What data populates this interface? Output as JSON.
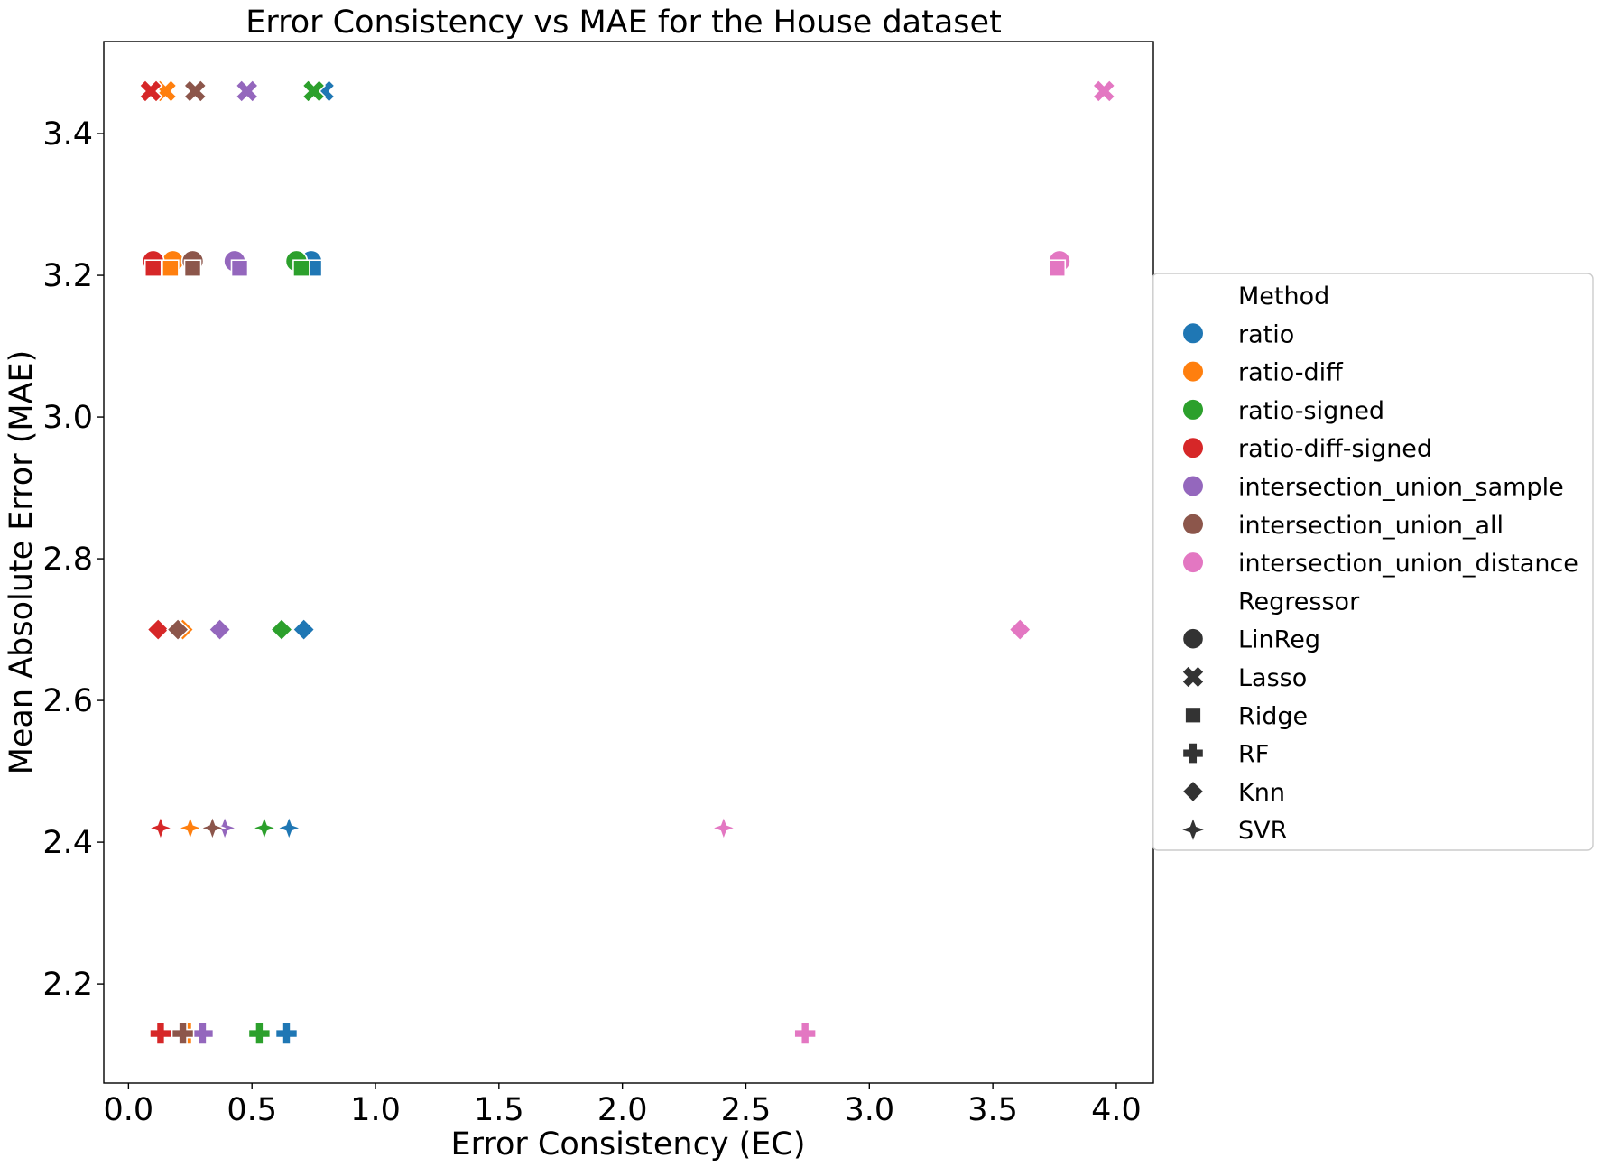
{
  "chart_data": {
    "type": "scatter",
    "title": "Error Consistency vs MAE for the House dataset",
    "xlabel": "Error Consistency (EC)",
    "ylabel": "Mean Absolute Error (MAE)",
    "xlim": [
      -0.1,
      4.15
    ],
    "ylim": [
      2.06,
      3.53
    ],
    "xticks": [
      0.0,
      0.5,
      1.0,
      1.5,
      2.0,
      2.5,
      3.0,
      3.5,
      4.0
    ],
    "xtick_labels": [
      "0.0",
      "0.5",
      "1.0",
      "1.5",
      "2.0",
      "2.5",
      "3.0",
      "3.5",
      "4.0"
    ],
    "yticks": [
      2.2,
      2.4,
      2.6,
      2.8,
      3.0,
      3.2,
      3.4
    ],
    "ytick_labels": [
      "2.2",
      "2.4",
      "2.6",
      "2.8",
      "3.0",
      "3.2",
      "3.4"
    ],
    "grid": false,
    "legend_placement": "outside-right",
    "legend": {
      "hue_title": "Method",
      "style_title": "Regressor",
      "methods": [
        {
          "name": "ratio",
          "color": "#1f77b4"
        },
        {
          "name": "ratio-diff",
          "color": "#ff7f0e"
        },
        {
          "name": "ratio-signed",
          "color": "#2ca02c"
        },
        {
          "name": "ratio-diff-signed",
          "color": "#d62728"
        },
        {
          "name": "intersection_union_sample",
          "color": "#9467bd"
        },
        {
          "name": "intersection_union_all",
          "color": "#8c564b"
        },
        {
          "name": "intersection_union_distance",
          "color": "#e377c2"
        }
      ],
      "regressors": [
        {
          "name": "LinReg",
          "marker": "circle"
        },
        {
          "name": "Lasso",
          "marker": "x"
        },
        {
          "name": "Ridge",
          "marker": "square"
        },
        {
          "name": "RF",
          "marker": "plus"
        },
        {
          "name": "Knn",
          "marker": "diamond"
        },
        {
          "name": "SVR",
          "marker": "star4"
        }
      ]
    },
    "points": [
      {
        "method": "ratio",
        "regressor": "LinReg",
        "x": 0.74,
        "y": 3.22
      },
      {
        "method": "ratio-diff",
        "regressor": "LinReg",
        "x": 0.18,
        "y": 3.22
      },
      {
        "method": "ratio-signed",
        "regressor": "LinReg",
        "x": 0.68,
        "y": 3.22
      },
      {
        "method": "ratio-diff-signed",
        "regressor": "LinReg",
        "x": 0.1,
        "y": 3.22
      },
      {
        "method": "intersection_union_sample",
        "regressor": "LinReg",
        "x": 0.43,
        "y": 3.22
      },
      {
        "method": "intersection_union_all",
        "regressor": "LinReg",
        "x": 0.26,
        "y": 3.22
      },
      {
        "method": "intersection_union_distance",
        "regressor": "LinReg",
        "x": 3.77,
        "y": 3.22
      },
      {
        "method": "ratio",
        "regressor": "Lasso",
        "x": 0.79,
        "y": 3.46
      },
      {
        "method": "ratio-diff",
        "regressor": "Lasso",
        "x": 0.15,
        "y": 3.46
      },
      {
        "method": "ratio-signed",
        "regressor": "Lasso",
        "x": 0.75,
        "y": 3.46
      },
      {
        "method": "ratio-diff-signed",
        "regressor": "Lasso",
        "x": 0.09,
        "y": 3.46
      },
      {
        "method": "intersection_union_sample",
        "regressor": "Lasso",
        "x": 0.48,
        "y": 3.46
      },
      {
        "method": "intersection_union_all",
        "regressor": "Lasso",
        "x": 0.27,
        "y": 3.46
      },
      {
        "method": "intersection_union_distance",
        "regressor": "Lasso",
        "x": 3.95,
        "y": 3.46
      },
      {
        "method": "ratio",
        "regressor": "Ridge",
        "x": 0.75,
        "y": 3.21
      },
      {
        "method": "ratio-diff",
        "regressor": "Ridge",
        "x": 0.17,
        "y": 3.21
      },
      {
        "method": "ratio-signed",
        "regressor": "Ridge",
        "x": 0.7,
        "y": 3.21
      },
      {
        "method": "ratio-diff-signed",
        "regressor": "Ridge",
        "x": 0.1,
        "y": 3.21
      },
      {
        "method": "intersection_union_sample",
        "regressor": "Ridge",
        "x": 0.45,
        "y": 3.21
      },
      {
        "method": "intersection_union_all",
        "regressor": "Ridge",
        "x": 0.26,
        "y": 3.21
      },
      {
        "method": "intersection_union_distance",
        "regressor": "Ridge",
        "x": 3.76,
        "y": 3.21
      },
      {
        "method": "ratio",
        "regressor": "RF",
        "x": 0.64,
        "y": 2.13
      },
      {
        "method": "ratio-diff",
        "regressor": "RF",
        "x": 0.24,
        "y": 2.13
      },
      {
        "method": "ratio-signed",
        "regressor": "RF",
        "x": 0.53,
        "y": 2.13
      },
      {
        "method": "ratio-diff-signed",
        "regressor": "RF",
        "x": 0.13,
        "y": 2.13
      },
      {
        "method": "intersection_union_sample",
        "regressor": "RF",
        "x": 0.3,
        "y": 2.13
      },
      {
        "method": "intersection_union_all",
        "regressor": "RF",
        "x": 0.22,
        "y": 2.13
      },
      {
        "method": "intersection_union_distance",
        "regressor": "RF",
        "x": 2.74,
        "y": 2.13
      },
      {
        "method": "ratio",
        "regressor": "Knn",
        "x": 0.71,
        "y": 2.7
      },
      {
        "method": "ratio-diff",
        "regressor": "Knn",
        "x": 0.22,
        "y": 2.7
      },
      {
        "method": "ratio-signed",
        "regressor": "Knn",
        "x": 0.62,
        "y": 2.7
      },
      {
        "method": "ratio-diff-signed",
        "regressor": "Knn",
        "x": 0.12,
        "y": 2.7
      },
      {
        "method": "intersection_union_sample",
        "regressor": "Knn",
        "x": 0.37,
        "y": 2.7
      },
      {
        "method": "intersection_union_all",
        "regressor": "Knn",
        "x": 0.2,
        "y": 2.7
      },
      {
        "method": "intersection_union_distance",
        "regressor": "Knn",
        "x": 3.61,
        "y": 2.7
      },
      {
        "method": "ratio",
        "regressor": "SVR",
        "x": 0.65,
        "y": 2.42
      },
      {
        "method": "ratio-diff",
        "regressor": "SVR",
        "x": 0.25,
        "y": 2.42
      },
      {
        "method": "ratio-signed",
        "regressor": "SVR",
        "x": 0.55,
        "y": 2.42
      },
      {
        "method": "ratio-diff-signed",
        "regressor": "SVR",
        "x": 0.13,
        "y": 2.42
      },
      {
        "method": "intersection_union_sample",
        "regressor": "SVR",
        "x": 0.39,
        "y": 2.42
      },
      {
        "method": "intersection_union_all",
        "regressor": "SVR",
        "x": 0.34,
        "y": 2.42
      },
      {
        "method": "intersection_union_distance",
        "regressor": "SVR",
        "x": 2.41,
        "y": 2.42
      }
    ]
  }
}
